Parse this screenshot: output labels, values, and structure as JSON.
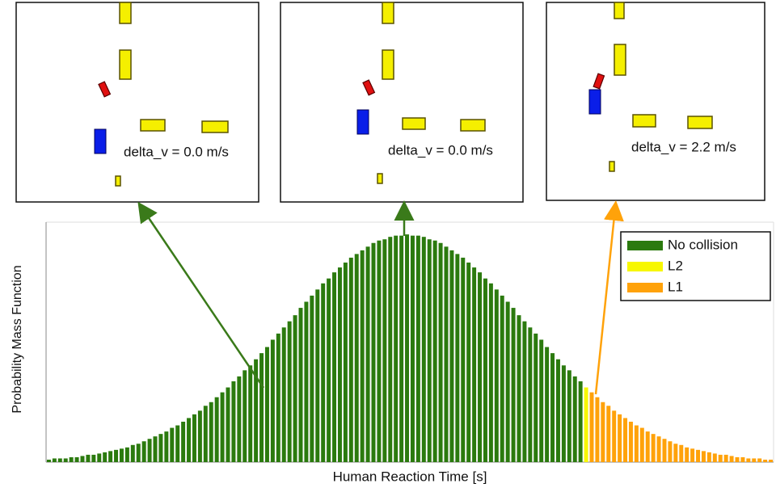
{
  "chart_data": {
    "type": "bar",
    "x_label": "Human Reaction Time [s]",
    "y_label": "Probability Mass Function",
    "ylim": [
      0,
      0.0196
    ],
    "legend": "upper right",
    "series": [
      {
        "name": "No collision",
        "color": "#2b7a0e",
        "values": [
          0.0002,
          0.0003,
          0.0003,
          0.0003,
          0.0004,
          0.0004,
          0.0005,
          0.0006,
          0.0006,
          0.0007,
          0.0008,
          0.0009,
          0.001,
          0.0011,
          0.0012,
          0.0014,
          0.0015,
          0.0017,
          0.0019,
          0.0021,
          0.0023,
          0.0025,
          0.0028,
          0.003,
          0.0033,
          0.0036,
          0.0039,
          0.0042,
          0.0046,
          0.0049,
          0.0053,
          0.0057,
          0.0061,
          0.0066,
          0.007,
          0.0075,
          0.0079,
          0.0084,
          0.0089,
          0.0094,
          0.01,
          0.0105,
          0.011,
          0.0115,
          0.012,
          0.0126,
          0.0131,
          0.0136,
          0.0141,
          0.0146,
          0.015,
          0.0155,
          0.0159,
          0.0163,
          0.0167,
          0.017,
          0.0173,
          0.0176,
          0.0179,
          0.0181,
          0.0182,
          0.0184,
          0.0185,
          0.0185,
          0.0186,
          0.0185,
          0.0185,
          0.0184,
          0.0182,
          0.0181,
          0.0179,
          0.0176,
          0.0173,
          0.017,
          0.0167,
          0.0163,
          0.0159,
          0.0155,
          0.015,
          0.0146,
          0.0141,
          0.0136,
          0.0131,
          0.0126,
          0.012,
          0.0115,
          0.011,
          0.0105,
          0.01,
          0.0094,
          0.0089,
          0.0084,
          0.0079,
          0.0075,
          0.007,
          0.0066,
          null,
          null,
          null,
          null,
          null,
          null,
          null,
          null,
          null,
          null,
          null,
          null,
          null,
          null,
          null,
          null,
          null,
          null,
          null,
          null,
          null,
          null,
          null,
          null,
          null,
          null,
          null,
          null,
          null,
          null,
          null,
          null,
          null,
          null
        ]
      },
      {
        "name": "L2",
        "color": "#f7f700",
        "values": [
          null,
          null,
          null,
          null,
          null,
          null,
          null,
          null,
          null,
          null,
          null,
          null,
          null,
          null,
          null,
          null,
          null,
          null,
          null,
          null,
          null,
          null,
          null,
          null,
          null,
          null,
          null,
          null,
          null,
          null,
          null,
          null,
          null,
          null,
          null,
          null,
          null,
          null,
          null,
          null,
          null,
          null,
          null,
          null,
          null,
          null,
          null,
          null,
          null,
          null,
          null,
          null,
          null,
          null,
          null,
          null,
          null,
          null,
          null,
          null,
          null,
          null,
          null,
          null,
          null,
          null,
          null,
          null,
          null,
          null,
          null,
          null,
          null,
          null,
          null,
          null,
          null,
          null,
          null,
          null,
          null,
          null,
          null,
          null,
          null,
          null,
          null,
          null,
          null,
          null,
          null,
          null,
          null,
          null,
          null,
          null,
          0.0061,
          null,
          null,
          null,
          null,
          null,
          null,
          null,
          null,
          null,
          null,
          null,
          null,
          null,
          null,
          null,
          null,
          null,
          null,
          null,
          null,
          null,
          null,
          null,
          null,
          null,
          null,
          null,
          null,
          null,
          null,
          null,
          null,
          null
        ]
      },
      {
        "name": "L1",
        "color": "#ffa20a",
        "values": [
          null,
          null,
          null,
          null,
          null,
          null,
          null,
          null,
          null,
          null,
          null,
          null,
          null,
          null,
          null,
          null,
          null,
          null,
          null,
          null,
          null,
          null,
          null,
          null,
          null,
          null,
          null,
          null,
          null,
          null,
          null,
          null,
          null,
          null,
          null,
          null,
          null,
          null,
          null,
          null,
          null,
          null,
          null,
          null,
          null,
          null,
          null,
          null,
          null,
          null,
          null,
          null,
          null,
          null,
          null,
          null,
          null,
          null,
          null,
          null,
          null,
          null,
          null,
          null,
          null,
          null,
          null,
          null,
          null,
          null,
          null,
          null,
          null,
          null,
          null,
          null,
          null,
          null,
          null,
          null,
          null,
          null,
          null,
          null,
          null,
          null,
          null,
          null,
          null,
          null,
          null,
          null,
          null,
          null,
          null,
          null,
          null,
          0.0057,
          0.0053,
          0.0049,
          0.0046,
          0.0042,
          0.0039,
          0.0036,
          0.0033,
          0.003,
          0.0028,
          0.0025,
          0.0023,
          0.0021,
          0.0019,
          0.0017,
          0.0015,
          0.0014,
          0.0012,
          0.0011,
          0.001,
          0.0009,
          0.0008,
          0.0007,
          0.0006,
          0.0006,
          0.0005,
          0.0004,
          0.0004,
          0.0003,
          0.0003,
          0.0003,
          0.0002,
          0.0002
        ]
      }
    ]
  },
  "insets": [
    {
      "label": "delta_v = 0.0 m/s"
    },
    {
      "label": "delta_v = 0.0 m/s"
    },
    {
      "label": "delta_v = 2.2 m/s"
    }
  ]
}
